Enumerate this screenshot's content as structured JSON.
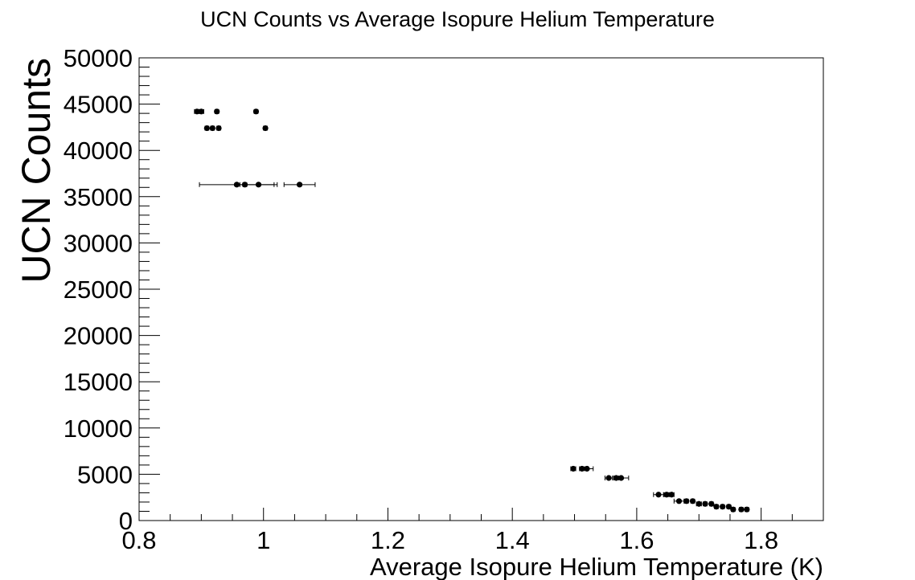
{
  "chart_data": {
    "type": "scatter",
    "title": "UCN Counts vs Average Isopure Helium Temperature",
    "xlabel": "Average Isopure Helium Temperature (K)",
    "ylabel": "UCN Counts",
    "xlim": [
      0.8,
      1.9
    ],
    "ylim": [
      0,
      50000
    ],
    "x_tick_labels": [
      "0.8",
      "1",
      "1.2",
      "1.4",
      "1.6",
      "1.8"
    ],
    "x_tick_values": [
      0.8,
      1.0,
      1.2,
      1.4,
      1.6,
      1.8
    ],
    "y_tick_labels": [
      "0",
      "5000",
      "10000",
      "15000",
      "20000",
      "25000",
      "30000",
      "35000",
      "40000",
      "45000",
      "50000"
    ],
    "y_tick_values": [
      0,
      5000,
      10000,
      15000,
      20000,
      25000,
      30000,
      35000,
      40000,
      45000,
      50000
    ],
    "grid": false,
    "marker_color": "#000000",
    "points": [
      {
        "x": 0.893,
        "y": 44200,
        "xerr": 0.004
      },
      {
        "x": 0.9,
        "y": 44200,
        "xerr": 0.004
      },
      {
        "x": 0.925,
        "y": 44200,
        "xerr": 0.003
      },
      {
        "x": 0.988,
        "y": 44200,
        "xerr": 0.003
      },
      {
        "x": 0.909,
        "y": 42400,
        "xerr": 0.003
      },
      {
        "x": 0.918,
        "y": 42400,
        "xerr": 0.003
      },
      {
        "x": 0.928,
        "y": 42400,
        "xerr": 0.003
      },
      {
        "x": 1.003,
        "y": 42400,
        "xerr": 0.003
      },
      {
        "x": 0.957,
        "y": 36300,
        "xerr": 0.06
      },
      {
        "x": 0.97,
        "y": 36300,
        "xerr": 0.003
      },
      {
        "x": 0.992,
        "y": 36300,
        "xerr": 0.03
      },
      {
        "x": 1.058,
        "y": 36300,
        "xerr": 0.025
      },
      {
        "x": 1.498,
        "y": 5600,
        "xerr": 0.004
      },
      {
        "x": 1.512,
        "y": 5600,
        "xerr": 0.004
      },
      {
        "x": 1.52,
        "y": 5600,
        "xerr": 0.01
      },
      {
        "x": 1.555,
        "y": 4600,
        "xerr": 0.006
      },
      {
        "x": 1.567,
        "y": 4600,
        "xerr": 0.004
      },
      {
        "x": 1.575,
        "y": 4600,
        "xerr": 0.012
      },
      {
        "x": 1.635,
        "y": 2800,
        "xerr": 0.008
      },
      {
        "x": 1.648,
        "y": 2800,
        "xerr": 0.004
      },
      {
        "x": 1.656,
        "y": 2800,
        "xerr": 0.004
      },
      {
        "x": 1.668,
        "y": 2100,
        "xerr": 0.008
      },
      {
        "x": 1.68,
        "y": 2100,
        "xerr": 0.003
      },
      {
        "x": 1.69,
        "y": 2100,
        "xerr": 0.003
      },
      {
        "x": 1.7,
        "y": 1800,
        "xerr": 0.004
      },
      {
        "x": 1.71,
        "y": 1800,
        "xerr": 0.003
      },
      {
        "x": 1.72,
        "y": 1800,
        "xerr": 0.003
      },
      {
        "x": 1.728,
        "y": 1500,
        "xerr": 0.003
      },
      {
        "x": 1.738,
        "y": 1500,
        "xerr": 0.003
      },
      {
        "x": 1.748,
        "y": 1500,
        "xerr": 0.003
      },
      {
        "x": 1.755,
        "y": 1200,
        "xerr": 0.003
      },
      {
        "x": 1.768,
        "y": 1200,
        "xerr": 0.003
      },
      {
        "x": 1.777,
        "y": 1200,
        "xerr": 0.003
      }
    ]
  }
}
